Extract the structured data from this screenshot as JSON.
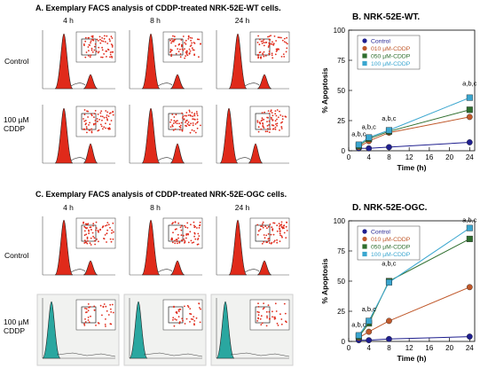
{
  "panelA": {
    "title": "A. Exemplary FACS analysis of CDDP-treated NRK-52E-WT cells.",
    "times": [
      "4 h",
      "8 h",
      "24 h"
    ],
    "rows": [
      "Control",
      "100 µM CDDP"
    ]
  },
  "panelC": {
    "title": "C. Exemplary FACS analysis of CDDP-treated NRK-52E-OGC cells.",
    "times": [
      "4 h",
      "8 h",
      "24 h"
    ],
    "rows": [
      "Control",
      "100 µM CDDP"
    ]
  },
  "colors": {
    "control": "#1f1f8f",
    "cddp010": "#c0582a",
    "cddp050": "#2e6e2e",
    "cddp100": "#3aa6cf",
    "histRed": "#e02a1a",
    "histTeal": "#2aa7a0"
  },
  "chart_data": [
    {
      "type": "line",
      "title": "B. NRK-52E-WT.",
      "xlabel": "Time (h)",
      "ylabel": "% Apoptosis",
      "xlim": [
        0,
        25
      ],
      "ylim": [
        0,
        100
      ],
      "xticks": [
        0,
        4,
        8,
        12,
        16,
        20,
        24
      ],
      "yticks": [
        0,
        25,
        50,
        75,
        100
      ],
      "legend_position": "top-left",
      "x": [
        2,
        4,
        8,
        24
      ],
      "series": [
        {
          "name": "Control",
          "values": [
            2,
            2,
            3,
            7
          ],
          "marker": "circle"
        },
        {
          "name": "010 µM-CDDP",
          "values": [
            3,
            8,
            15,
            28
          ],
          "marker": "circle"
        },
        {
          "name": "050 µM-CDDP",
          "values": [
            4,
            10,
            16,
            34
          ],
          "marker": "square"
        },
        {
          "name": "100 µM-CDDP",
          "values": [
            5,
            11,
            17,
            44
          ],
          "marker": "square"
        }
      ],
      "annotations": [
        {
          "x": 2,
          "y": 12,
          "text": "a,b,c"
        },
        {
          "x": 4,
          "y": 18,
          "text": "a,b,c"
        },
        {
          "x": 8,
          "y": 25,
          "text": "a,b,c"
        },
        {
          "x": 24,
          "y": 54,
          "text": "a,b,c"
        }
      ]
    },
    {
      "type": "line",
      "title": "D. NRK-52E-OGC.",
      "xlabel": "Time (h)",
      "ylabel": "% Apoptosis",
      "xlim": [
        0,
        25
      ],
      "ylim": [
        0,
        100
      ],
      "xticks": [
        0,
        4,
        8,
        12,
        16,
        20,
        24
      ],
      "yticks": [
        0,
        25,
        50,
        75,
        100
      ],
      "legend_position": "top-left",
      "x": [
        2,
        4,
        8,
        24
      ],
      "series": [
        {
          "name": "Control",
          "values": [
            1,
            1,
            2,
            4
          ],
          "marker": "circle"
        },
        {
          "name": "010 µM-CDDP",
          "values": [
            3,
            8,
            17,
            45
          ],
          "marker": "circle"
        },
        {
          "name": "050 µM-CDDP",
          "values": [
            4,
            15,
            50,
            85
          ],
          "marker": "square"
        },
        {
          "name": "100 µM-CDDP",
          "values": [
            5,
            17,
            49,
            94
          ],
          "marker": "square"
        }
      ],
      "annotations": [
        {
          "x": 2,
          "y": 12,
          "text": "a,b,c"
        },
        {
          "x": 4,
          "y": 25,
          "text": "a,b,c"
        },
        {
          "x": 8,
          "y": 63,
          "text": "a,b,c"
        },
        {
          "x": 24,
          "y": 99,
          "text": "a,b,c"
        }
      ]
    }
  ]
}
